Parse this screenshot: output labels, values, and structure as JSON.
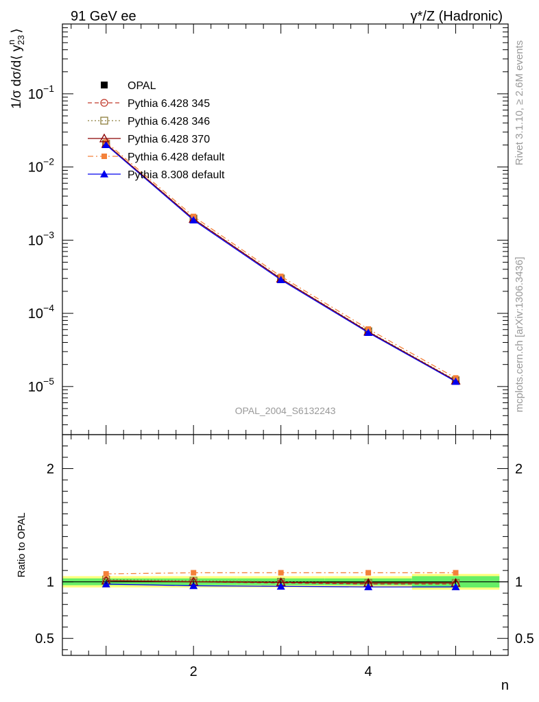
{
  "header": {
    "left_label": "91 GeV ee",
    "right_label": "γ*/Z (Hadronic)"
  },
  "side_labels": {
    "rivet": "Rivet 3.1.10, ≥ 2.6M events",
    "source": "mcplots.cern.ch [arXiv:1306.3436]"
  },
  "watermark": "OPAL_2004_S6132243",
  "colors": {
    "opal": "#000000",
    "py345": "#c0392b",
    "py346": "#8b7d3a",
    "py370": "#8b0000",
    "pydef": "#f4813a",
    "py8": "#0000ee",
    "band_yellow": "#ffff80",
    "band_green": "#66ee66"
  },
  "chart_data": [
    {
      "type": "line",
      "ylabel": "1/σ dσ/d⟨ y23^n ⟩",
      "yscale": "log",
      "ylim": [
        2.2e-06,
        0.9
      ],
      "xlim": [
        0.5,
        5.6
      ],
      "y_ticks": [
        "10^-5",
        "10^-4",
        "10^-3",
        "10^-2",
        "10^-1"
      ],
      "x": [
        1,
        2,
        3,
        4,
        5
      ],
      "legend_position": "top-left",
      "series": [
        {
          "name": "OPAL",
          "key": "opal",
          "marker": "square-filled",
          "values": [
            0.0205,
            0.00195,
            0.000298,
            5.7e-05,
            1.22e-05
          ]
        },
        {
          "name": "Pythia 6.428 345",
          "key": "py345",
          "marker": "circle-open",
          "dash": "dashed",
          "values": [
            0.0207,
            0.00196,
            0.000298,
            5.6e-05,
            1.2e-05
          ]
        },
        {
          "name": "Pythia 6.428 346",
          "key": "py346",
          "marker": "square-open",
          "dash": "dotted",
          "values": [
            0.0208,
            0.00197,
            0.0003,
            5.7e-05,
            1.22e-05
          ]
        },
        {
          "name": "Pythia 6.428 370",
          "key": "py370",
          "marker": "triangle-open",
          "dash": "solid",
          "values": [
            0.0206,
            0.00195,
            0.000297,
            5.6e-05,
            1.2e-05
          ]
        },
        {
          "name": "Pythia 6.428 default",
          "key": "pydef",
          "marker": "square-filled-small",
          "dash": "dashdot",
          "values": [
            0.0219,
            0.00211,
            0.00032,
            6.1e-05,
            1.31e-05
          ]
        },
        {
          "name": "Pythia 8.308 default",
          "key": "py8",
          "marker": "triangle-filled",
          "dash": "solid",
          "values": [
            0.0201,
            0.00188,
            0.000287,
            5.45e-05,
            1.17e-05
          ]
        }
      ]
    },
    {
      "type": "line",
      "ylabel": "Ratio to OPAL",
      "xlabel": "n",
      "ylim": [
        0.35,
        2.3
      ],
      "xlim": [
        0.5,
        5.6
      ],
      "y_ticks": [
        "0.5",
        "1",
        "2"
      ],
      "x_ticks": [
        "2",
        "4"
      ],
      "x": [
        1,
        2,
        3,
        4,
        5
      ],
      "bands": {
        "yellow_half_width": [
          0.05,
          0.05,
          0.05,
          0.05,
          0.07
        ],
        "green_half_width": [
          0.03,
          0.03,
          0.03,
          0.03,
          0.05
        ]
      },
      "series": [
        {
          "key": "opal",
          "values": [
            1.0,
            1.0,
            1.0,
            1.0,
            1.0
          ]
        },
        {
          "key": "py345",
          "values": [
            1.01,
            1.0,
            0.99,
            0.98,
            0.98
          ]
        },
        {
          "key": "py346",
          "values": [
            1.02,
            1.01,
            1.0,
            0.99,
            0.99
          ]
        },
        {
          "key": "py370",
          "values": [
            1.01,
            1.0,
            0.995,
            0.99,
            0.99
          ]
        },
        {
          "key": "pydef",
          "values": [
            1.07,
            1.08,
            1.08,
            1.08,
            1.08
          ]
        },
        {
          "key": "py8",
          "values": [
            0.98,
            0.965,
            0.96,
            0.955,
            0.955
          ]
        }
      ]
    }
  ]
}
